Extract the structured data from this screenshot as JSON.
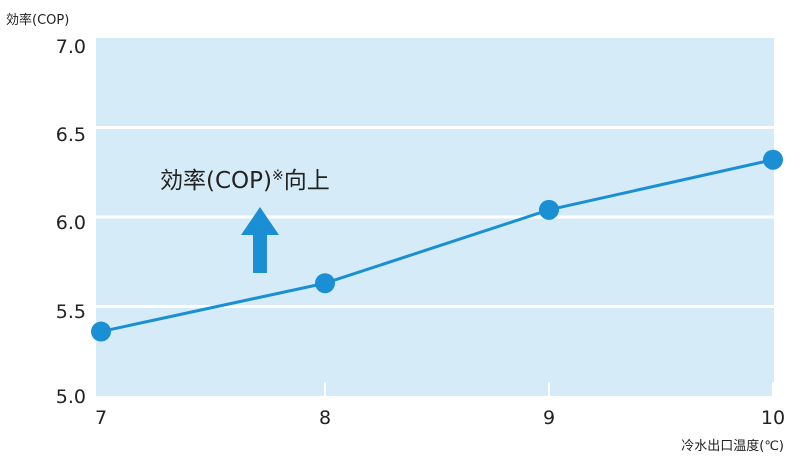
{
  "chart_data": {
    "type": "line",
    "title": "",
    "ylabel": "効率(COP)",
    "xlabel": "冷水出口温度(℃)",
    "x": [
      7,
      8,
      9,
      10
    ],
    "series": [
      {
        "values": [
          5.36,
          5.63,
          6.04,
          6.32
        ]
      }
    ],
    "x_tick_labels": [
      "7",
      "8",
      "9",
      "10"
    ],
    "y_tick_labels": [
      "5.0",
      "5.5",
      "6.0",
      "6.5",
      "7.0"
    ],
    "xlim": [
      7,
      10
    ],
    "ylim": [
      5.0,
      7.0
    ],
    "grid": true,
    "legend": "none",
    "annotation": {
      "text": "効率(COP)",
      "mark": "※",
      "suffix": "向上",
      "arrow": "up"
    },
    "colors": {
      "background": "#d5ecf8",
      "line": "#1a8fd4",
      "marker": "#1a8fd4",
      "arrow": "#1a8fd4",
      "grid": "#ffffff",
      "text": "#222222"
    }
  }
}
